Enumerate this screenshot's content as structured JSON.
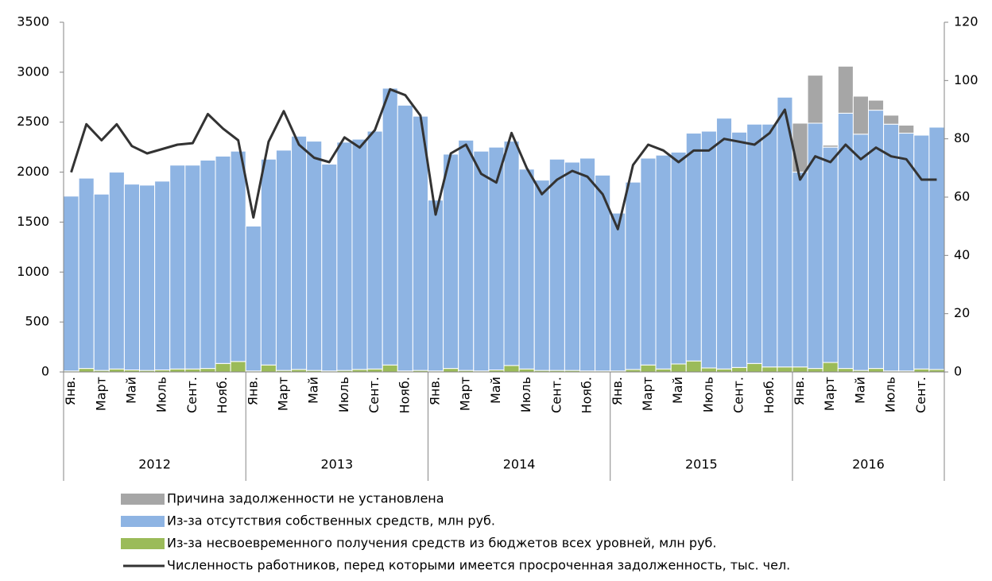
{
  "chart_data": {
    "type": "bar",
    "stacked": true,
    "categories": [
      "Янв.",
      null,
      "Март",
      null,
      "Май",
      null,
      "Июль",
      null,
      "Сент.",
      null,
      "Нояб.",
      null,
      "Янв.",
      null,
      "Март",
      null,
      "Май",
      null,
      "Июль",
      null,
      "Сент.",
      null,
      "Нояб.",
      null,
      "Янв.",
      null,
      "Март",
      null,
      "Май",
      null,
      "Июль",
      null,
      "Сент.",
      null,
      "Нояб.",
      null,
      "Янв.",
      null,
      "Март",
      null,
      "Май",
      null,
      "Июль",
      null,
      "Сент.",
      null,
      "Нояб.",
      null,
      "Янв.",
      null,
      "Март",
      null,
      "Май",
      null,
      "Июль",
      null,
      "Сент.",
      null
    ],
    "category_groups": [
      "2012",
      "2012",
      "2012",
      "2012",
      "2012",
      "2012",
      "2012",
      "2012",
      "2012",
      "2012",
      "2012",
      "2012",
      "2013",
      "2013",
      "2013",
      "2013",
      "2013",
      "2013",
      "2013",
      "2013",
      "2013",
      "2013",
      "2013",
      "2013",
      "2014",
      "2014",
      "2014",
      "2014",
      "2014",
      "2014",
      "2014",
      "2014",
      "2014",
      "2014",
      "2014",
      "2014",
      "2015",
      "2015",
      "2015",
      "2015",
      "2015",
      "2015",
      "2015",
      "2015",
      "2015",
      "2015",
      "2015",
      "2015",
      "2016",
      "2016",
      "2016",
      "2016",
      "2016",
      "2016",
      "2016",
      "2016",
      "2016",
      "2016"
    ],
    "series": [
      {
        "name": "Из-за несвоевременного получения средств из бюджетов всех уровней, млн руб.",
        "color": "#9bbb59",
        "values": [
          10,
          35,
          15,
          30,
          20,
          15,
          20,
          30,
          30,
          35,
          85,
          105,
          10,
          70,
          15,
          25,
          15,
          10,
          15,
          25,
          30,
          70,
          10,
          15,
          10,
          35,
          15,
          10,
          20,
          65,
          30,
          15,
          15,
          15,
          10,
          10,
          10,
          25,
          70,
          30,
          80,
          110,
          40,
          30,
          45,
          85,
          50,
          50,
          50,
          35,
          95,
          35,
          15,
          35,
          10,
          10,
          30,
          25
        ]
      },
      {
        "name": "Из-за отсутствия собственных средств, млн руб.",
        "color": "#8eb4e3",
        "values": [
          1750,
          1905,
          1765,
          1970,
          1860,
          1855,
          1890,
          2040,
          2040,
          2085,
          2075,
          2105,
          1450,
          2060,
          2205,
          2335,
          2295,
          2070,
          2285,
          2305,
          2380,
          2770,
          2660,
          2545,
          1710,
          2145,
          2305,
          2200,
          2230,
          2245,
          2000,
          1905,
          2115,
          2085,
          2130,
          1960,
          1580,
          1875,
          2070,
          2140,
          2120,
          2280,
          2370,
          2510,
          2355,
          2395,
          2430,
          2700,
          1950,
          2455,
          2155,
          2555,
          2365,
          2585,
          2470,
          2380,
          2340,
          2425
        ]
      },
      {
        "name": "Причина задолженности не установлена",
        "color": "#a6a6a6",
        "values": [
          0,
          0,
          0,
          0,
          0,
          0,
          0,
          0,
          0,
          0,
          0,
          0,
          0,
          0,
          0,
          0,
          0,
          0,
          0,
          0,
          0,
          0,
          0,
          0,
          0,
          0,
          0,
          0,
          0,
          0,
          0,
          0,
          0,
          0,
          0,
          0,
          0,
          0,
          0,
          0,
          0,
          0,
          0,
          0,
          0,
          0,
          0,
          0,
          490,
          480,
          20,
          470,
          380,
          100,
          90,
          80,
          0,
          0
        ]
      },
      {
        "name": "Численность работников, перед которыми имеется просроченная задолженность, тыс. чел.",
        "color": "#333333",
        "axis": "y2",
        "type": "line",
        "values": [
          68.5,
          85,
          79.5,
          85,
          77.5,
          75,
          76.5,
          78,
          78.5,
          88.5,
          83.5,
          79.5,
          53,
          79,
          89.5,
          78,
          73.5,
          72,
          80.5,
          77,
          83,
          97,
          95,
          88,
          54,
          75,
          78,
          68,
          65,
          82,
          70,
          61,
          66,
          69,
          67,
          61,
          49,
          71,
          78,
          76,
          72,
          76,
          76,
          80,
          79,
          78,
          82,
          90,
          66,
          74,
          72,
          78,
          73,
          77,
          74,
          73,
          66,
          66
        ]
      }
    ],
    "legend_order": [
      2,
      1,
      0,
      3
    ],
    "ylim": [
      0,
      3500
    ],
    "yticks": [
      0,
      500,
      1000,
      1500,
      2000,
      2500,
      3000,
      3500
    ],
    "y2lim": [
      0,
      120
    ],
    "y2ticks": [
      0,
      20,
      40,
      60,
      80,
      100,
      120
    ],
    "grid": false
  }
}
